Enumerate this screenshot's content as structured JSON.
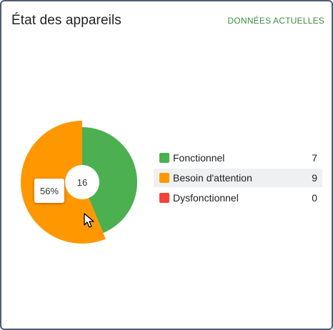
{
  "card": {
    "title": "État des appareils",
    "link_label": "DONNÉES ACTUELLES"
  },
  "chart": {
    "type": "pie",
    "total_label": "16",
    "tooltip_text": "56%"
  },
  "chart_data": {
    "type": "pie",
    "categories": [
      "Fonctionnel",
      "Besoin d'attention",
      "Dysfonctionnel"
    ],
    "values": [
      7,
      9,
      0
    ],
    "total": 16,
    "highlighted_category": "Besoin d'attention",
    "colors": [
      "#4caf50",
      "#ff9800",
      "#f44336"
    ]
  },
  "legend": {
    "items": [
      {
        "label": "Fonctionnel",
        "value": "7",
        "color": "#4caf50"
      },
      {
        "label": "Besoin d'attention",
        "value": "9",
        "color": "#ff9800"
      },
      {
        "label": "Dysfonctionnel",
        "value": "0",
        "color": "#f44336"
      }
    ]
  },
  "colors": {
    "border": "#4f5b73",
    "accent_link": "#3d8b40",
    "hover_row": "#eff0f2"
  }
}
